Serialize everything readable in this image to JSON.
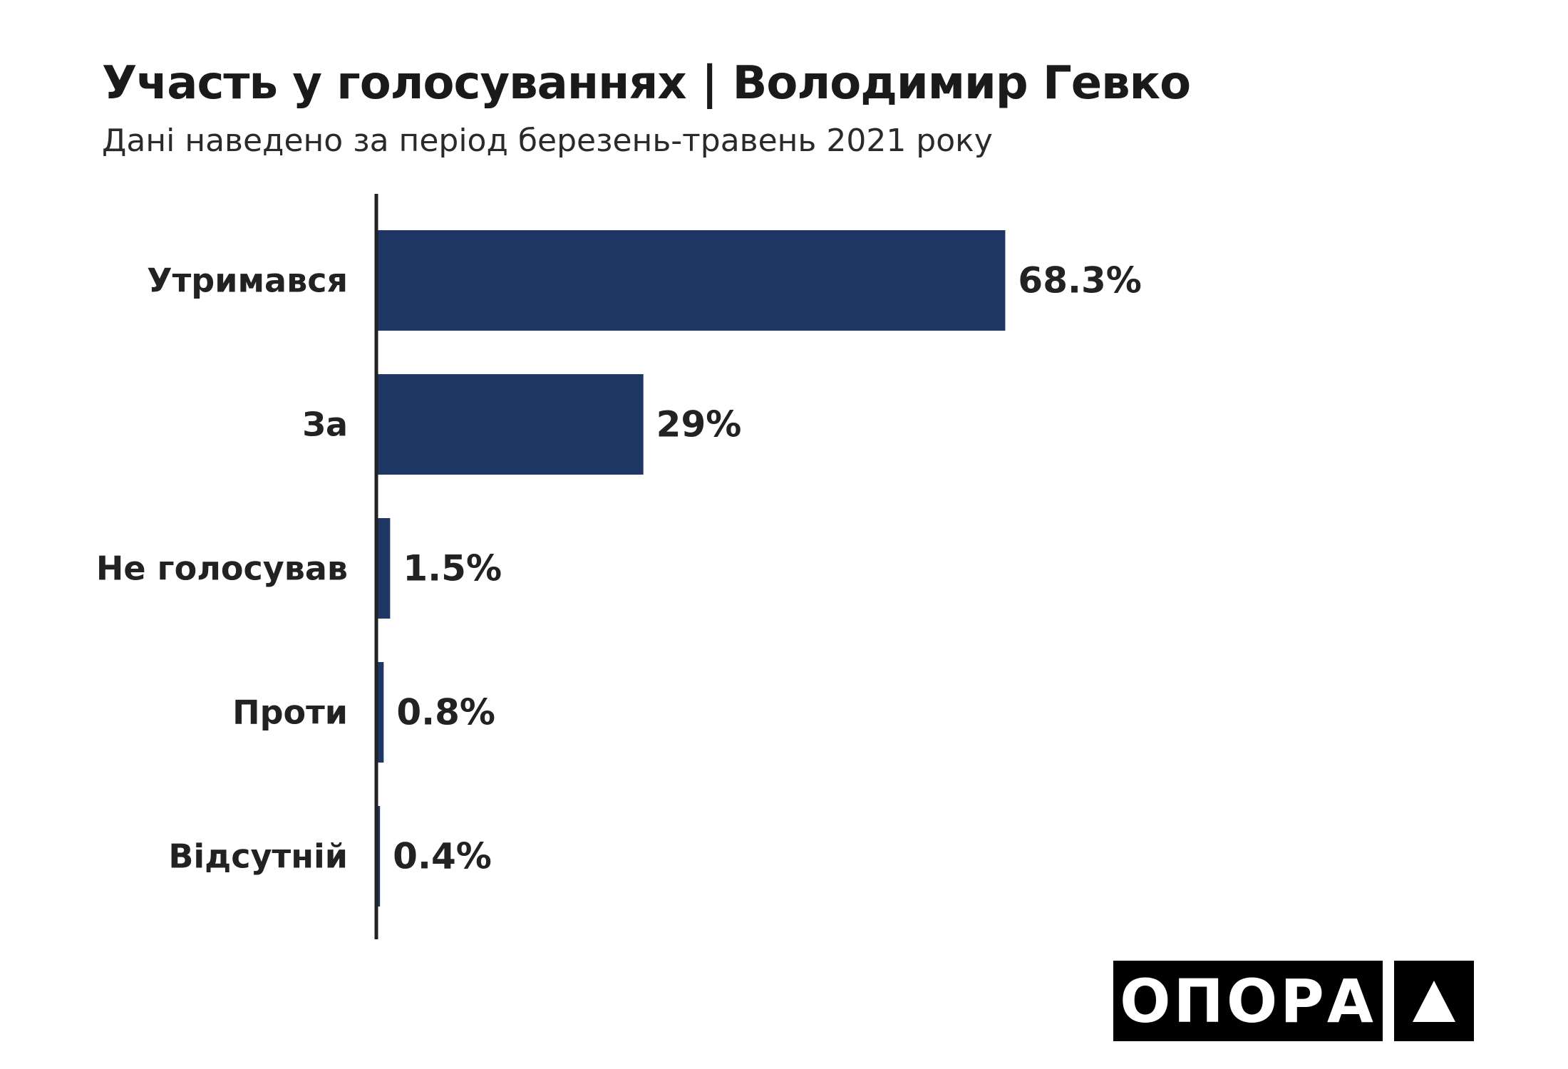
{
  "header": {
    "title": "Участь у голосуваннях | Володимир Гевко",
    "subtitle": "Дані наведено за період березень-травень 2021 року"
  },
  "chart_data": {
    "type": "bar",
    "orientation": "horizontal",
    "categories": [
      "Утримався",
      "За",
      "Не голосував",
      "Проти",
      "Відсутній"
    ],
    "values": [
      68.3,
      29,
      1.5,
      0.8,
      0.4
    ],
    "value_labels": [
      "68.3%",
      "29%",
      "1.5%",
      "0.8%",
      "0.4%"
    ],
    "unit": "%",
    "xlim": [
      0,
      100
    ],
    "grid": false,
    "legend": "none",
    "bar_color": "#1f3764",
    "axis_color": "#222222"
  },
  "logo": {
    "text": "ОПОРА",
    "icon": "triangle-icon",
    "background": "#000000",
    "foreground": "#ffffff"
  }
}
